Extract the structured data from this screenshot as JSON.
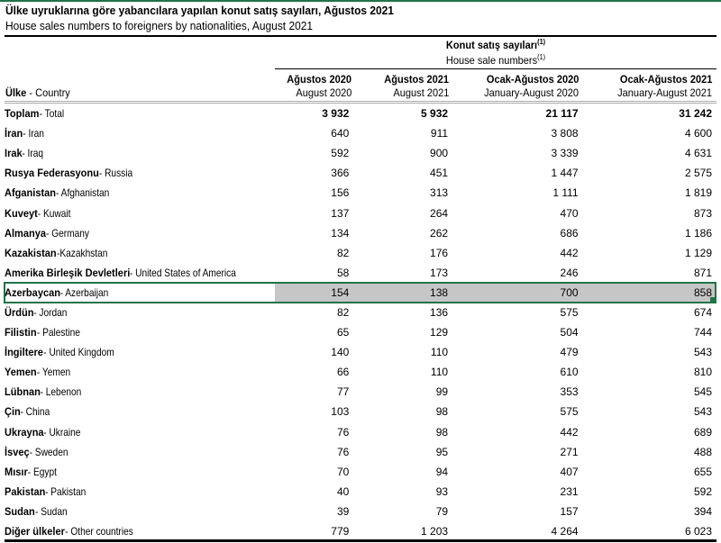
{
  "title": "Ülke uyruklarına göre yabancılara yapılan konut satış sayıları, Ağustos 2021",
  "subtitle": "House sales numbers to foreigners by nationalities, August 2021",
  "group_header": {
    "tr": "Konut satış sayıları",
    "en": "House sale numbers",
    "note": "(1)"
  },
  "columns": [
    {
      "tr": "Ağustos 2020",
      "en": "August 2020"
    },
    {
      "tr": "Ağustos 2021",
      "en": "August 2021"
    },
    {
      "tr": "Ocak-Ağustos 2020",
      "en": "January-August 2020"
    },
    {
      "tr": "Ocak-Ağustos 2021",
      "en": "January-August 2021"
    }
  ],
  "country_header": {
    "tr": "Ülke",
    "en": " - Country"
  },
  "selected_row": "Azerbaycan",
  "selection_color": "#217346",
  "rows": [
    {
      "tr": "Toplam",
      "en": " - Total",
      "v": [
        "3 932",
        "5 932",
        "21 117",
        "31 242"
      ],
      "bold": true
    },
    {
      "tr": "İran",
      "en": " - Iran",
      "v": [
        "640",
        "911",
        "3 808",
        "4 600"
      ]
    },
    {
      "tr": "Irak",
      "en": " - Iraq",
      "v": [
        "592",
        "900",
        "3 339",
        "4 631"
      ]
    },
    {
      "tr": "Rusya Federasyonu",
      "en": " - Russia",
      "v": [
        "366",
        "451",
        "1 447",
        "2 575"
      ]
    },
    {
      "tr": "Afganistan",
      "en": " - Afghanistan",
      "v": [
        "156",
        "313",
        "1 111",
        "1 819"
      ]
    },
    {
      "tr": "Kuveyt",
      "en": " - Kuwait",
      "v": [
        "137",
        "264",
        "470",
        "873"
      ]
    },
    {
      "tr": "Almanya",
      "en": " - Germany",
      "v": [
        "134",
        "262",
        "686",
        "1 186"
      ]
    },
    {
      "tr": "Kazakistan",
      "en": " -Kazakhstan",
      "v": [
        "82",
        "176",
        "442",
        "1 129"
      ]
    },
    {
      "tr": "Amerika Birleşik Devletleri",
      "en": " - United States of America",
      "v": [
        "58",
        "173",
        "246",
        "871"
      ]
    },
    {
      "tr": "Azerbaycan",
      "en": " - Azerbaijan",
      "v": [
        "154",
        "138",
        "700",
        "858"
      ]
    },
    {
      "tr": "Ürdün",
      "en": " - Jordan",
      "v": [
        "82",
        "136",
        "575",
        "674"
      ]
    },
    {
      "tr": "Filistin",
      "en": " - Palestine",
      "v": [
        "65",
        "129",
        "504",
        "744"
      ]
    },
    {
      "tr": "İngiltere",
      "en": " - United Kingdom",
      "v": [
        "140",
        "110",
        "479",
        "543"
      ]
    },
    {
      "tr": "Yemen",
      "en": " - Yemen",
      "v": [
        "66",
        "110",
        "610",
        "810"
      ]
    },
    {
      "tr": "Lübnan",
      "en": " - Lebenon",
      "v": [
        "77",
        "99",
        "353",
        "545"
      ]
    },
    {
      "tr": "Çin",
      "en": " - China",
      "v": [
        "103",
        "98",
        "575",
        "543"
      ]
    },
    {
      "tr": "Ukrayna",
      "en": " - Ukraine",
      "v": [
        "76",
        "98",
        "442",
        "689"
      ]
    },
    {
      "tr": "İsveç",
      "en": " - Sweden",
      "v": [
        "76",
        "95",
        "271",
        "488"
      ]
    },
    {
      "tr": "Mısır",
      "en": " - Egypt",
      "v": [
        "70",
        "94",
        "407",
        "655"
      ]
    },
    {
      "tr": "Pakistan",
      "en": " - Pakistan",
      "v": [
        "40",
        "93",
        "231",
        "592"
      ]
    },
    {
      "tr": "Sudan",
      "en": " - Sudan",
      "v": [
        "39",
        "79",
        "157",
        "394"
      ]
    },
    {
      "tr": "Diğer ülkeler",
      "en": " - Other countries",
      "v": [
        "779",
        "1 203",
        "4 264",
        "6 023"
      ]
    }
  ]
}
